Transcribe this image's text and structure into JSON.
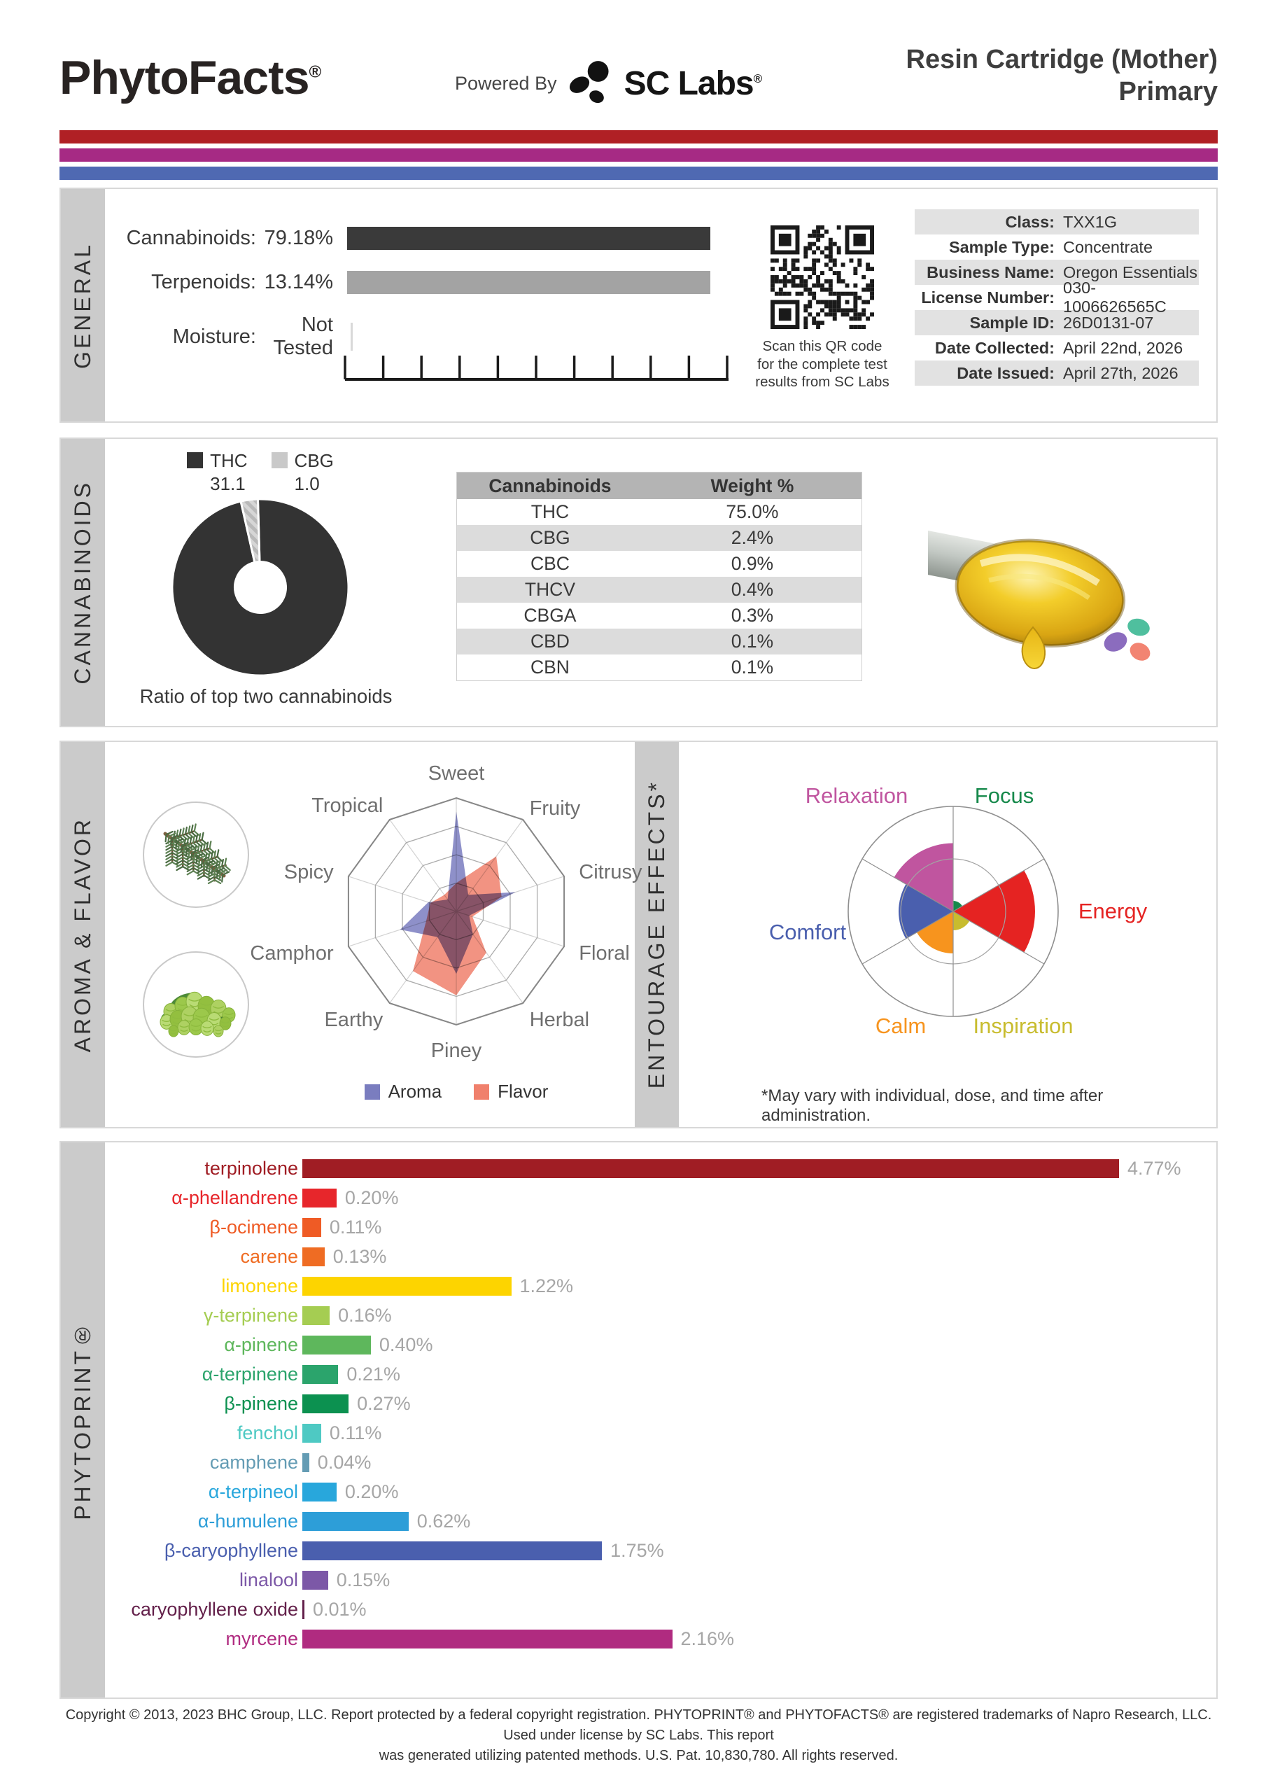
{
  "header": {
    "brand": "PhytoFacts",
    "brand_reg": "®",
    "powered_by": "Powered By",
    "lab_name": "SC Labs",
    "lab_reg": "®",
    "title_line1": "Resin Cartridge (Mother)",
    "title_line2": "Primary"
  },
  "accent_bars": {
    "red": "#b02025",
    "magenta": "#a62a84",
    "blue": "#4f69b2"
  },
  "general": {
    "section_label": "GENERAL",
    "rows": [
      {
        "label": "Cannabinoids:",
        "value": "79.18%",
        "bar": true,
        "bar_color": "#3a3a3a"
      },
      {
        "label": "Terpenoids:",
        "value": "13.14%",
        "bar": true,
        "bar_color": "#a3a3a3"
      },
      {
        "label": "Moisture:",
        "value": "Not Tested",
        "bar": false,
        "bar_color": ""
      }
    ],
    "qr_caption_lines": [
      "Scan this QR code",
      "for the complete test",
      "results from SC Labs"
    ],
    "info_table": [
      {
        "label": "Class:",
        "value": "TXX1G"
      },
      {
        "label": "Sample Type:",
        "value": "Concentrate"
      },
      {
        "label": "Business Name:",
        "value": "Oregon Essentials"
      },
      {
        "label": "License Number:",
        "value": "030-1006626565C"
      },
      {
        "label": "Sample ID:",
        "value": "26D0131-07"
      },
      {
        "label": "Date Collected:",
        "value": "April 22nd, 2026"
      },
      {
        "label": "Date Issued:",
        "value": "April 27th, 2026"
      }
    ]
  },
  "cannabinoids": {
    "section_label": "CANNABINOIDS",
    "donut_caption": "Ratio of top two cannabinoids",
    "donut_legend": [
      {
        "name": "THC",
        "value": "31.1",
        "color": "#333333"
      },
      {
        "name": "CBG",
        "value": "1.0",
        "color": "#c9c9c9"
      }
    ],
    "table": {
      "headers": [
        "Cannabinoids",
        "Weight %"
      ],
      "rows": [
        [
          "THC",
          "75.0%"
        ],
        [
          "CBG",
          "2.4%"
        ],
        [
          "CBC",
          "0.9%"
        ],
        [
          "THCV",
          "0.4%"
        ],
        [
          "CBGA",
          "0.3%"
        ],
        [
          "CBD",
          "0.1%"
        ],
        [
          "CBN",
          "0.1%"
        ]
      ]
    }
  },
  "aroma_flavor": {
    "section_label": "AROMA & FLAVOR",
    "legend": [
      {
        "label": "Aroma",
        "color": "#7a7dbf"
      },
      {
        "label": "Flavor",
        "color": "#f0806c"
      }
    ]
  },
  "entourage": {
    "section_label": "ENTOURAGE EFFECTS*",
    "disclaimer": "*May vary with individual, dose, and time after administration."
  },
  "phytoprint": {
    "section_label": "PHYTOPRINT®"
  },
  "footer": {
    "line1": "Copyright © 2013, 2023 BHC Group, LLC. Report protected by a federal copyright registration. PHYTOPRINT® and PHYTOFACTS® are registered trademarks of Napro Research, LLC. Used under license by SC Labs. This report",
    "line2": "was generated utilizing patented methods. U.S. Pat. 10,830,780. All rights reserved."
  },
  "chart_data": [
    {
      "id": "cannabinoid_ratio",
      "type": "pie",
      "title": "Ratio of top two cannabinoids",
      "labels": [
        "THC",
        "CBG"
      ],
      "values": [
        31.1,
        1.0
      ],
      "display_values": [
        "31.1",
        "1.0"
      ],
      "colors": [
        "#333333",
        "#c9c9c9"
      ],
      "hole_ratio": 0.29,
      "cbg_slice_hatched": true
    },
    {
      "id": "aroma_flavor_radar",
      "type": "radar",
      "categories": [
        "Sweet",
        "Fruity",
        "Citrusy",
        "Floral",
        "Herbal",
        "Piney",
        "Earthy",
        "Camphor",
        "Spicy",
        "Tropical"
      ],
      "series": [
        {
          "name": "Aroma",
          "color": "#7a7dbf",
          "values": [
            0.88,
            0.18,
            0.55,
            0.12,
            0.25,
            0.55,
            0.28,
            0.52,
            0.26,
            0.13
          ]
        },
        {
          "name": "Flavor",
          "color": "#f0806c",
          "values": [
            0.25,
            0.6,
            0.42,
            0.15,
            0.45,
            0.74,
            0.65,
            0.28,
            0.24,
            0.18
          ]
        }
      ],
      "rmax": 1,
      "grid_rings": [
        0.25,
        0.5,
        0.75,
        1.0
      ],
      "legend_position": "bottom"
    },
    {
      "id": "entourage_polar",
      "type": "polar",
      "categories": [
        "Focus",
        "Energy",
        "Inspiration",
        "Calm",
        "Comfort",
        "Relaxation"
      ],
      "values": [
        0.1,
        0.78,
        0.18,
        0.4,
        0.52,
        0.65
      ],
      "colors": [
        "#16894b",
        "#e52322",
        "#c8bc2e",
        "#f7941e",
        "#4a5fae",
        "#c0559f"
      ],
      "rmax": 1,
      "grid_rings": [
        0.5,
        1.0
      ]
    },
    {
      "id": "phytoprint_terpenes",
      "type": "bar",
      "orientation": "horizontal",
      "categories": [
        "terpinolene",
        "α-phellandrene",
        "β-ocimene",
        "carene",
        "limonene",
        "γ-terpinene",
        "α-pinene",
        "α-terpinene",
        "β-pinene",
        "fenchol",
        "camphene",
        "α-terpineol",
        "α-humulene",
        "β-caryophyllene",
        "linalool",
        "caryophyllene oxide",
        "myrcene"
      ],
      "values": [
        4.77,
        0.2,
        0.11,
        0.13,
        1.22,
        0.16,
        0.4,
        0.21,
        0.27,
        0.11,
        0.04,
        0.2,
        0.62,
        1.75,
        0.15,
        0.01,
        2.16
      ],
      "display_values": [
        "4.77%",
        "0.20%",
        "0.11%",
        "0.13%",
        "1.22%",
        "0.16%",
        "0.40%",
        "0.21%",
        "0.27%",
        "0.11%",
        "0.04%",
        "0.20%",
        "0.62%",
        "1.75%",
        "0.15%",
        "0.01%",
        "2.16%"
      ],
      "colors": [
        "#a01d24",
        "#e7262b",
        "#ef5b25",
        "#ef6c23",
        "#fdd400",
        "#a5cd52",
        "#5eb75c",
        "#2ba46c",
        "#0c9150",
        "#4ec9c3",
        "#649cb4",
        "#28a7dc",
        "#2d9ed8",
        "#4a5fae",
        "#7c58a7",
        "#63204a",
        "#b02b80"
      ],
      "xmax": 4.77
    }
  ]
}
